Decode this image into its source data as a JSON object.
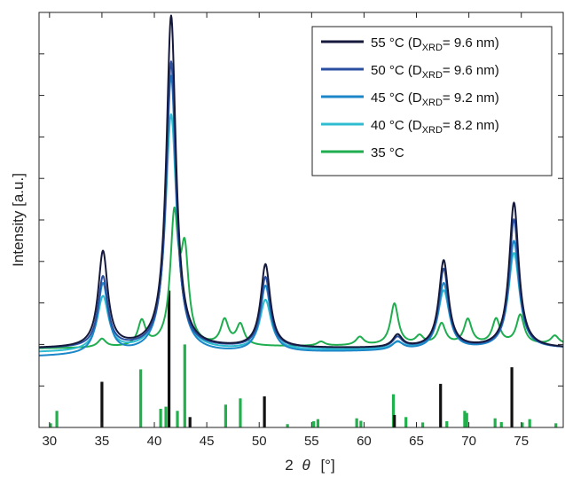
{
  "chart_data": {
    "type": "line",
    "xlabel_main": "2",
    "xlabel_theta": "θ",
    "xlabel_unit": "[°]",
    "ylabel": "Intensity [a.u.]",
    "xlim": [
      29,
      79
    ],
    "ylim": [
      0,
      100
    ],
    "x_ticks": [
      30,
      35,
      40,
      45,
      50,
      55,
      60,
      65,
      70,
      75
    ],
    "legend_position": "top-right",
    "series": [
      {
        "label_main": "55 °C (D",
        "label_sub": "XRD",
        "label_tail": "= 9.6 nm)",
        "color": "#151a3d",
        "baseline": 19,
        "drift": 0.0,
        "width": 0.55,
        "peaks": [
          [
            35.1,
            23
          ],
          [
            41.6,
            80
          ],
          [
            50.6,
            20
          ],
          [
            63.2,
            3
          ],
          [
            67.6,
            21
          ],
          [
            74.3,
            35
          ]
        ]
      },
      {
        "label_main": "50 °C (D",
        "label_sub": "XRD",
        "label_tail": "= 9.6 nm)",
        "color": "#2b4fa0",
        "baseline": 19,
        "drift": 0.0,
        "width": 0.55,
        "peaks": [
          [
            35.1,
            17
          ],
          [
            41.6,
            69
          ],
          [
            50.6,
            17
          ],
          [
            63.2,
            2.5
          ],
          [
            67.6,
            19
          ],
          [
            74.3,
            31
          ]
        ]
      },
      {
        "label_main": "45 °C (D",
        "label_sub": "XRD",
        "label_tail": "= 9.2 nm)",
        "color": "#1b86c8",
        "baseline": 17,
        "drift": 2.0,
        "width": 0.6,
        "peaks": [
          [
            35.1,
            17
          ],
          [
            41.6,
            67
          ],
          [
            50.6,
            16
          ],
          [
            63.2,
            2
          ],
          [
            67.6,
            16
          ],
          [
            74.3,
            26
          ]
        ]
      },
      {
        "label_main": "40 °C (D",
        "label_sub": "XRD",
        "label_tail": "= 8.2 nm)",
        "color": "#2ebcd0",
        "baseline": 18,
        "drift": 1.0,
        "width": 0.65,
        "peaks": [
          [
            35.1,
            13
          ],
          [
            41.6,
            57
          ],
          [
            50.6,
            12
          ],
          [
            63.2,
            1.5
          ],
          [
            67.6,
            14
          ],
          [
            74.3,
            23
          ]
        ]
      },
      {
        "label_main": "35 °C",
        "label_sub": "",
        "label_tail": "",
        "color": "#1fae4f",
        "baseline": 19,
        "drift": 1.0,
        "width": 0.45,
        "peaks": [
          [
            35.0,
            2
          ],
          [
            38.8,
            6
          ],
          [
            41.9,
            30
          ],
          [
            42.9,
            21
          ],
          [
            46.7,
            6
          ],
          [
            48.2,
            5
          ],
          [
            55.9,
            1
          ],
          [
            59.6,
            2
          ],
          [
            62.9,
            10
          ],
          [
            65.3,
            2
          ],
          [
            67.4,
            5
          ],
          [
            69.9,
            6
          ],
          [
            72.6,
            6
          ],
          [
            74.9,
            7
          ],
          [
            78.2,
            2
          ]
        ]
      }
    ],
    "reference_black": {
      "color": "#111111",
      "sticks": [
        [
          35.0,
          11
        ],
        [
          41.4,
          33
        ],
        [
          43.4,
          2.5
        ],
        [
          50.5,
          7.5
        ],
        [
          62.9,
          3
        ],
        [
          67.3,
          10.5
        ],
        [
          74.1,
          14.5
        ]
      ]
    },
    "reference_green": {
      "color": "#21b14c",
      "sticks": [
        [
          30.1,
          1
        ],
        [
          30.7,
          4
        ],
        [
          38.7,
          14
        ],
        [
          40.6,
          4.5
        ],
        [
          41.1,
          5
        ],
        [
          42.2,
          4
        ],
        [
          42.9,
          20
        ],
        [
          46.8,
          5.5
        ],
        [
          48.2,
          7
        ],
        [
          52.7,
          0.8
        ],
        [
          55.2,
          1.5
        ],
        [
          55.6,
          2
        ],
        [
          59.3,
          2.2
        ],
        [
          59.7,
          1.6
        ],
        [
          62.8,
          8
        ],
        [
          64.0,
          2.5
        ],
        [
          65.6,
          1.2
        ],
        [
          67.9,
          1.5
        ],
        [
          69.6,
          4
        ],
        [
          69.8,
          3.5
        ],
        [
          72.5,
          2.2
        ],
        [
          73.1,
          1.3
        ],
        [
          75.1,
          1.2
        ],
        [
          75.8,
          2
        ],
        [
          78.3,
          1
        ]
      ]
    }
  }
}
